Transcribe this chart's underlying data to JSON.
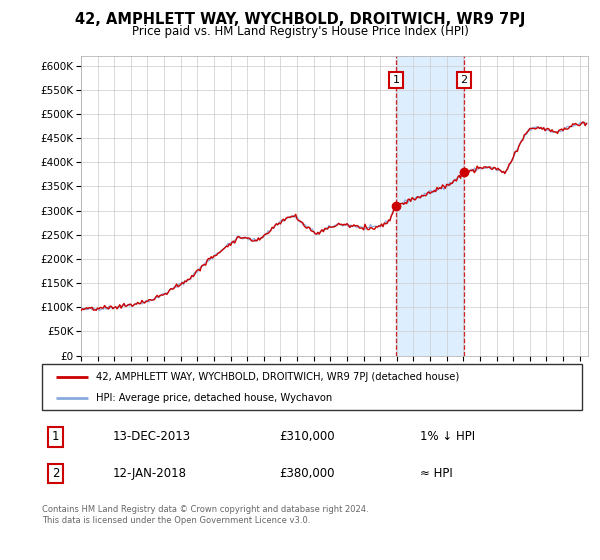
{
  "title": "42, AMPHLETT WAY, WYCHBOLD, DROITWICH, WR9 7PJ",
  "subtitle": "Price paid vs. HM Land Registry's House Price Index (HPI)",
  "ylim": [
    0,
    620000
  ],
  "xlim_start": 1995.0,
  "xlim_end": 2025.5,
  "sale1_date": 2013.96,
  "sale1_price": 310000,
  "sale1_label": "1",
  "sale2_date": 2018.04,
  "sale2_price": 380000,
  "sale2_label": "2",
  "annotation1_date": "13-DEC-2013",
  "annotation1_price": "£310,000",
  "annotation1_rel": "1% ↓ HPI",
  "annotation2_date": "12-JAN-2018",
  "annotation2_price": "£380,000",
  "annotation2_rel": "≈ HPI",
  "legend_line1": "42, AMPHLETT WAY, WYCHBOLD, DROITWICH, WR9 7PJ (detached house)",
  "legend_line2": "HPI: Average price, detached house, Wychavon",
  "footer": "Contains HM Land Registry data © Crown copyright and database right 2024.\nThis data is licensed under the Open Government Licence v3.0.",
  "hpi_color": "#88aadd",
  "price_color": "#cc0000",
  "bg_color": "#ffffff",
  "grid_color": "#cccccc",
  "highlight_color": "#ddeeff",
  "vline_color": "#cc0000",
  "box_color": "#cc0000"
}
